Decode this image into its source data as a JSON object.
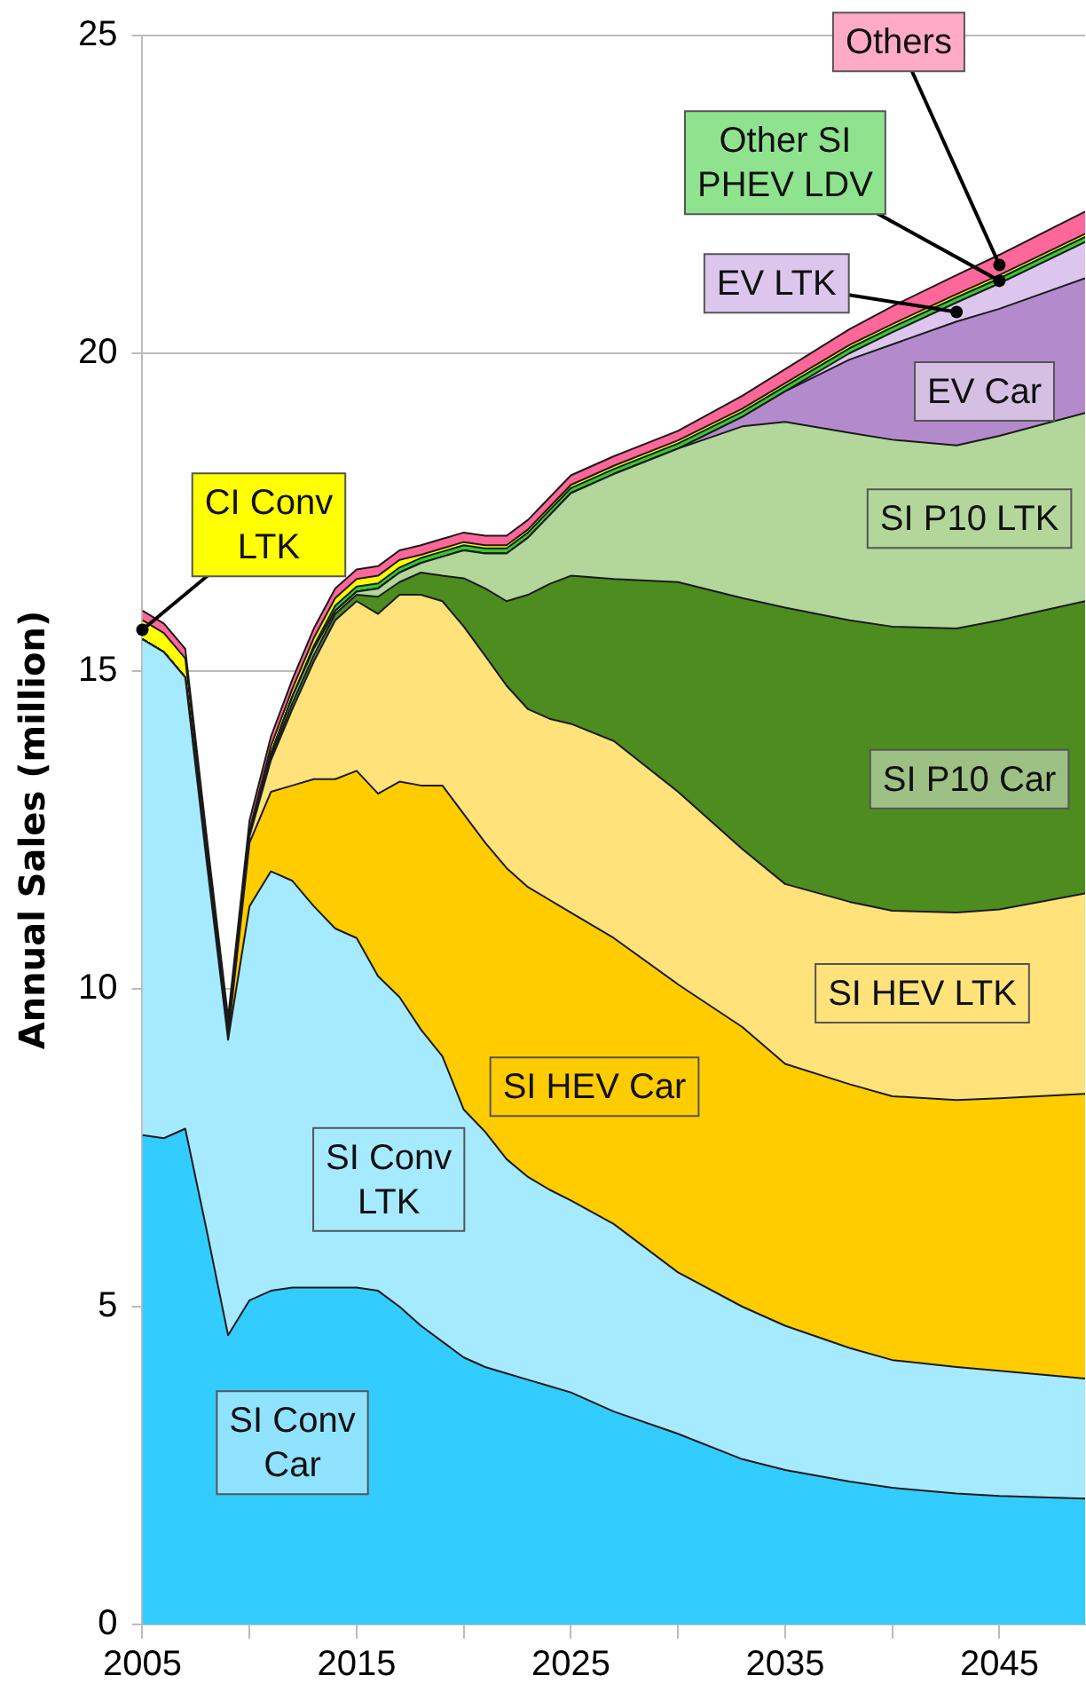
{
  "chart_data": {
    "type": "area",
    "stacked": true,
    "ylabel": "Annual Sales (million)",
    "x": [
      2005,
      2006,
      2007,
      2008,
      2009,
      2010,
      2011,
      2012,
      2013,
      2014,
      2015,
      2016,
      2017,
      2018,
      2019,
      2020,
      2021,
      2022,
      2023,
      2024,
      2025,
      2027,
      2030,
      2033,
      2035,
      2038,
      2040,
      2043,
      2045,
      2049
    ],
    "xlim": [
      2005,
      2049
    ],
    "xticks": [
      2005,
      {
        "value": 2010,
        "label": null
      },
      2015,
      {
        "value": 2020,
        "label": null
      },
      2025,
      {
        "value": 2030,
        "label": null
      },
      2035,
      {
        "value": 2040,
        "label": null
      },
      2045
    ],
    "ylim": [
      0,
      25
    ],
    "yticks": [
      0,
      5,
      10,
      15,
      20,
      25
    ],
    "grid": "y",
    "legend": false,
    "series": [
      {
        "name": "SI Conv Car",
        "color": "#33ccff",
        "values": [
          7.7,
          7.65,
          7.8,
          6.2,
          4.55,
          5.1,
          5.25,
          5.3,
          5.3,
          5.3,
          5.3,
          5.25,
          5.0,
          4.7,
          4.45,
          4.2,
          4.05,
          3.95,
          3.85,
          3.75,
          3.65,
          3.35,
          3.0,
          2.6,
          2.43,
          2.25,
          2.15,
          2.06,
          2.02,
          1.98
        ]
      },
      {
        "name": "SI Conv LTK",
        "color": "#a6eaff",
        "values": [
          7.8,
          7.65,
          7.1,
          5.8,
          4.65,
          6.2,
          6.6,
          6.4,
          6.0,
          5.65,
          5.5,
          4.95,
          4.87,
          4.66,
          4.49,
          3.9,
          3.7,
          3.37,
          3.19,
          3.09,
          3.02,
          2.95,
          2.54,
          2.4,
          2.27,
          2.1,
          2.01,
          1.99,
          1.97,
          1.89
        ]
      },
      {
        "name": "SI HEV Car",
        "color": "#ffcc00",
        "values": [
          0,
          0,
          0,
          0.05,
          0.05,
          1.0,
          1.25,
          1.5,
          2.0,
          2.35,
          2.63,
          2.87,
          3.39,
          3.84,
          4.26,
          4.65,
          4.55,
          4.58,
          4.56,
          4.56,
          4.53,
          4.5,
          4.53,
          4.4,
          4.12,
          4.15,
          4.15,
          4.2,
          4.29,
          4.48
        ]
      },
      {
        "name": "SI HEV LTK",
        "color": "#ffe27a",
        "values": [
          0,
          0,
          0,
          0,
          0.05,
          0.1,
          0.5,
          1.2,
          1.85,
          2.5,
          2.67,
          2.83,
          2.94,
          3.0,
          2.9,
          2.95,
          2.94,
          2.87,
          2.8,
          2.85,
          2.97,
          3.1,
          3.03,
          2.8,
          2.83,
          2.87,
          2.92,
          2.95,
          2.97,
          3.15
        ]
      },
      {
        "name": "SI P10 Car",
        "color": "#4d8c1f",
        "values": [
          0,
          0,
          0,
          0,
          0,
          0,
          0.05,
          0.1,
          0.1,
          0.1,
          0.1,
          0.27,
          0.2,
          0.35,
          0.4,
          0.76,
          1.06,
          1.33,
          1.8,
          2.12,
          2.33,
          2.55,
          3.3,
          3.95,
          4.35,
          4.43,
          4.47,
          4.47,
          4.55,
          4.6
        ]
      },
      {
        "name": "SI P10 LTK",
        "color": "#b3d69a",
        "values": [
          0,
          0,
          0,
          0,
          0,
          0,
          0.05,
          0.1,
          0.1,
          0.05,
          0.05,
          0.13,
          0.15,
          0.15,
          0.3,
          0.44,
          0.55,
          0.75,
          0.9,
          1.08,
          1.3,
          1.65,
          2.1,
          2.7,
          2.92,
          2.95,
          2.94,
          2.88,
          2.9,
          2.96
        ]
      },
      {
        "name": "EV Car",
        "color": "#b38acc",
        "values": [
          0,
          0,
          0,
          0,
          0,
          0,
          0,
          0,
          0,
          0,
          0,
          0,
          0,
          0,
          0,
          0,
          0,
          0,
          0,
          0,
          0,
          0,
          0,
          0.15,
          0.48,
          1.15,
          1.5,
          1.95,
          2.0,
          2.12
        ]
      },
      {
        "name": "EV LTK",
        "color": "#dcc6ee",
        "values": [
          0,
          0,
          0,
          0,
          0,
          0,
          0,
          0,
          0,
          0,
          0,
          0,
          0,
          0,
          0,
          0,
          0,
          0,
          0,
          0,
          0,
          0,
          0,
          0,
          0,
          0.1,
          0.19,
          0.3,
          0.4,
          0.57
        ]
      },
      {
        "name": "Other SI PHEV LDV",
        "color": "#33cc33",
        "values": [
          0,
          0,
          0,
          0,
          0,
          0,
          0,
          0,
          0.05,
          0.08,
          0.08,
          0.08,
          0.08,
          0.08,
          0.08,
          0.08,
          0.08,
          0.08,
          0.08,
          0.08,
          0.08,
          0.08,
          0.08,
          0.08,
          0.08,
          0.08,
          0.08,
          0.08,
          0.08,
          0.08
        ]
      },
      {
        "name": "CI Conv LTK",
        "color": "#ffff00",
        "values": [
          0.3,
          0.3,
          0.3,
          0.2,
          0.1,
          0.1,
          0.12,
          0.12,
          0.12,
          0.12,
          0.12,
          0.12,
          0.12,
          0.05,
          0.05,
          0.05,
          0.05,
          0.05,
          0.05,
          0.05,
          0.05,
          0.05,
          0.05,
          0.05,
          0.05,
          0.05,
          0.05,
          0.05,
          0.05,
          0.05
        ]
      },
      {
        "name": "Others",
        "color": "#ff6699",
        "values": [
          0.15,
          0.15,
          0.15,
          0.15,
          0.15,
          0.15,
          0.15,
          0.15,
          0.15,
          0.15,
          0.15,
          0.15,
          0.15,
          0.15,
          0.15,
          0.15,
          0.15,
          0.15,
          0.15,
          0.15,
          0.15,
          0.15,
          0.15,
          0.2,
          0.22,
          0.25,
          0.28,
          0.3,
          0.32,
          0.35
        ]
      }
    ]
  }
}
